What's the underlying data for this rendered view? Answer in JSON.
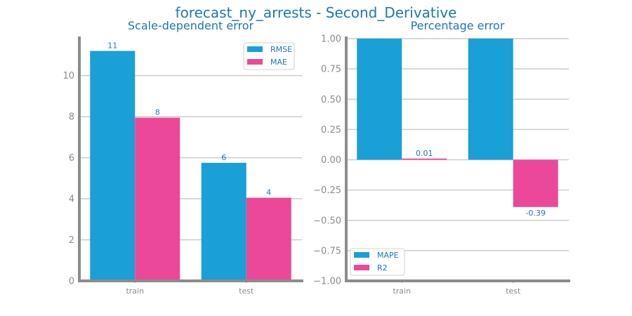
{
  "figure": {
    "title": "forecast_ny_arrests - Second_Derivative"
  },
  "colors": {
    "primary": "#1a9fd6",
    "secondary": "#ec4899",
    "text": "#1f77b4",
    "axis": "#8c8c8c",
    "grid": "#cccccc"
  },
  "chart_data": [
    {
      "type": "bar",
      "title": "Scale-dependent error",
      "categories": [
        "train",
        "test"
      ],
      "series": [
        {
          "name": "RMSE",
          "values": [
            11.2,
            5.75
          ],
          "labels": [
            "11",
            "6"
          ]
        },
        {
          "name": "MAE",
          "values": [
            7.95,
            4.05
          ],
          "labels": [
            "8",
            "4"
          ]
        }
      ],
      "ylim": [
        0,
        11.8
      ],
      "yticks": [
        0,
        2,
        4,
        6,
        8,
        10
      ],
      "ytick_labels": [
        "0",
        "2",
        "4",
        "6",
        "8",
        "10"
      ],
      "grid": true,
      "legend": "top-right"
    },
    {
      "type": "bar",
      "title": "Percentage error",
      "categories": [
        "train",
        "test"
      ],
      "series": [
        {
          "name": "MAPE",
          "values": [
            1.0,
            1.0
          ],
          "labels": [
            "",
            ""
          ]
        },
        {
          "name": "R2",
          "values": [
            0.01,
            -0.39
          ],
          "labels": [
            "0.01",
            "-0.39"
          ]
        }
      ],
      "ylim": [
        -1.0,
        1.0
      ],
      "yticks": [
        -1.0,
        -0.75,
        -0.5,
        -0.25,
        0.0,
        0.25,
        0.5,
        0.75,
        1.0
      ],
      "ytick_labels": [
        "−1.00",
        "−0.75",
        "−0.50",
        "−0.25",
        "0.00",
        "0.25",
        "0.50",
        "0.75",
        "1.00"
      ],
      "grid": true,
      "legend": "bottom-left"
    }
  ]
}
